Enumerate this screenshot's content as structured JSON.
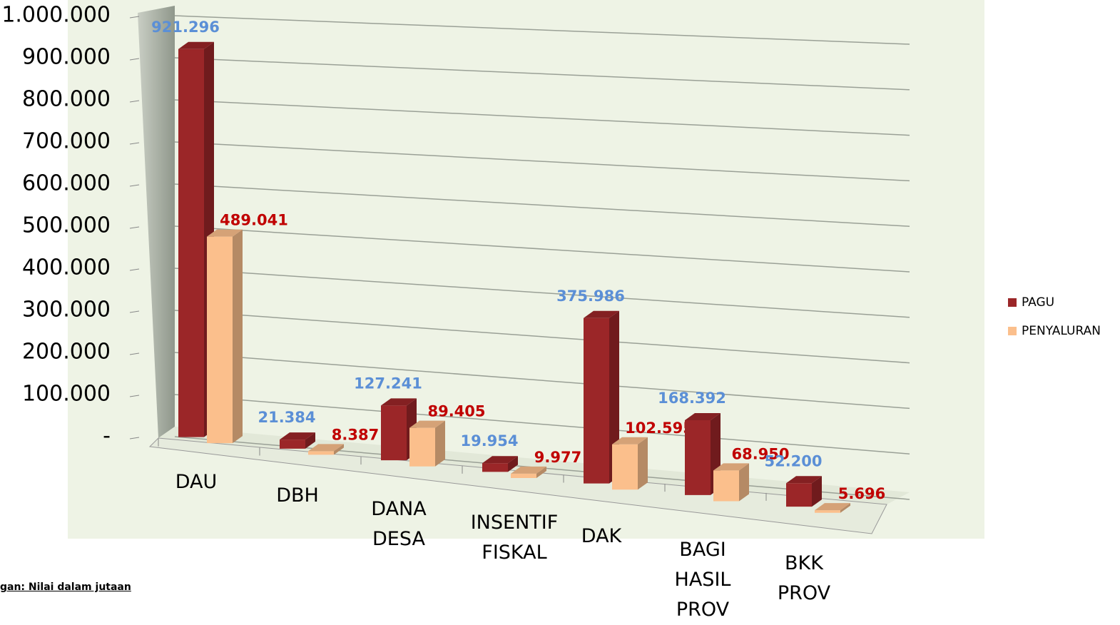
{
  "chart_data": {
    "type": "bar3d",
    "categories": [
      "DAU",
      "DBH",
      "DANA DESA",
      "INSENTIF FISKAL",
      "DAK",
      "BAGI HASIL PROV",
      "BKK PROV"
    ],
    "series": [
      {
        "name": "PAGU",
        "color": "#9b2628",
        "label_color": "#5b8fd6",
        "values": [
          921296,
          21384,
          127241,
          19954,
          375986,
          168392,
          52200
        ],
        "value_labels": [
          "921.296",
          "21.384",
          "127.241",
          "19.954",
          "375.986",
          "168.392",
          "52.200"
        ]
      },
      {
        "name": "PENYALURAN",
        "color": "#fbbf8c",
        "label_color": "#c00000",
        "values": [
          489041,
          8387,
          89405,
          9977,
          102595,
          68950,
          5696
        ],
        "value_labels": [
          "489.041",
          "8.387",
          "89.405",
          "9.977",
          "102.595",
          "68.950",
          "5.696"
        ]
      }
    ],
    "ylim": [
      0,
      1000000
    ],
    "yticks": [
      {
        "value": 0,
        "label": "-"
      },
      {
        "value": 100000,
        "label": "100.000"
      },
      {
        "value": 200000,
        "label": "200.000"
      },
      {
        "value": 300000,
        "label": "300.000"
      },
      {
        "value": 400000,
        "label": "400.000"
      },
      {
        "value": 500000,
        "label": "500.000"
      },
      {
        "value": 600000,
        "label": "600.000"
      },
      {
        "value": 700000,
        "label": "700.000"
      },
      {
        "value": 800000,
        "label": "800.000"
      },
      {
        "value": 900000,
        "label": "900.000"
      },
      {
        "value": 1000000,
        "label": "1.000.000"
      }
    ],
    "grid": true,
    "legend": "right",
    "footnote": "gan: Nilai dalam jutaan"
  }
}
